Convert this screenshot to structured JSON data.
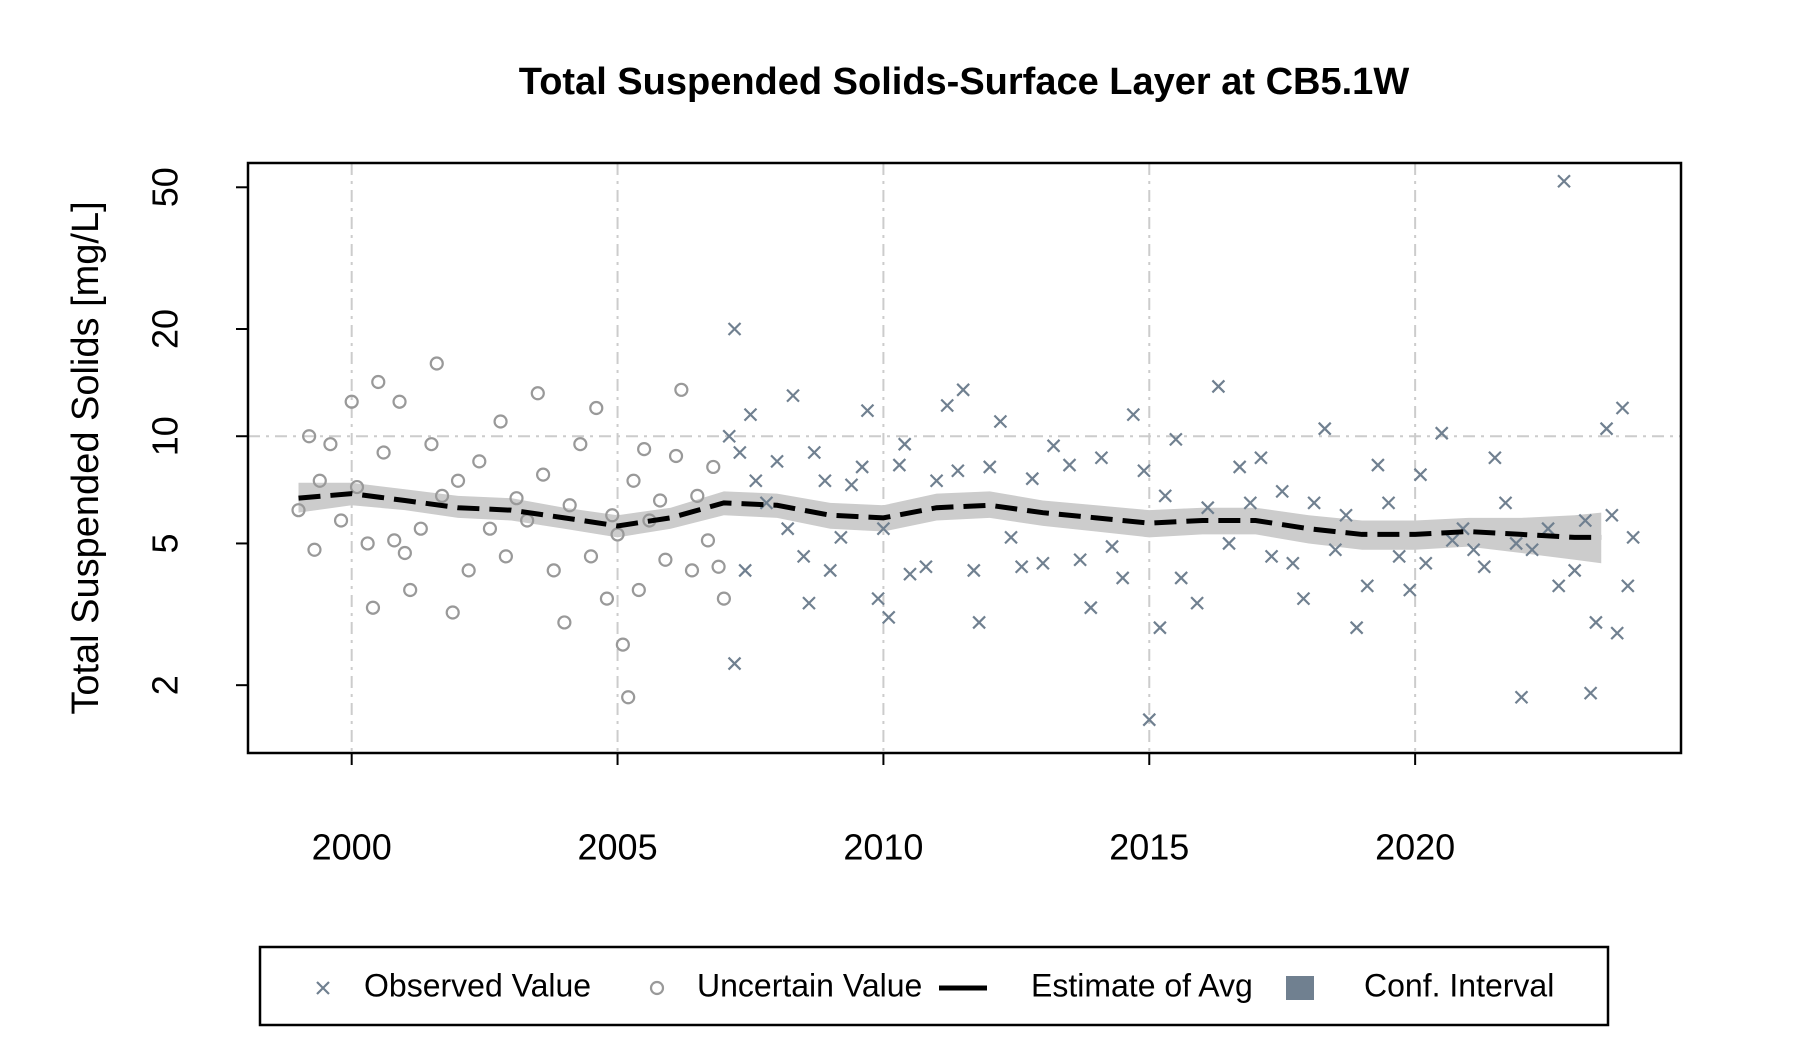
{
  "chart_data": {
    "type": "scatter",
    "title": "Total Suspended Solids-Surface Layer at CB5.1W",
    "y_label": "Total Suspended Solids [mg/L]",
    "xlim": [
      1998.05,
      2025.0
    ],
    "ylim": [
      1.29,
      58.5
    ],
    "y_log": true,
    "xticks": [
      2000,
      2005,
      2010,
      2015,
      2020
    ],
    "yticks": [
      2,
      5,
      10,
      20,
      50
    ],
    "x_grid": true,
    "y_reference_line": 10,
    "legend_position": "bottom",
    "series": [
      {
        "name": "Observed Value",
        "kind": "points",
        "marker": "x",
        "color": "#708090",
        "x": [
          2007.2,
          2007.2,
          2007.5,
          2007.1,
          2007.3,
          2007.6,
          2007.8,
          2007.4,
          2008.0,
          2008.3,
          2008.2,
          2008.6,
          2008.5,
          2008.7,
          2008.9,
          2009.0,
          2009.2,
          2009.4,
          2009.6,
          2009.7,
          2009.9,
          2010.0,
          2010.1,
          2010.3,
          2010.4,
          2010.5,
          2010.8,
          2011.0,
          2011.2,
          2011.4,
          2011.5,
          2011.7,
          2011.8,
          2012.0,
          2012.2,
          2012.4,
          2012.6,
          2012.8,
          2013.0,
          2013.2,
          2013.5,
          2013.7,
          2013.9,
          2014.1,
          2014.3,
          2014.5,
          2014.7,
          2014.9,
          2015.0,
          2015.2,
          2015.3,
          2015.5,
          2015.6,
          2015.9,
          2016.1,
          2016.3,
          2016.5,
          2016.7,
          2016.9,
          2017.1,
          2017.3,
          2017.5,
          2017.7,
          2017.9,
          2018.1,
          2018.3,
          2018.5,
          2018.7,
          2018.9,
          2019.1,
          2019.3,
          2019.5,
          2019.7,
          2019.9,
          2020.1,
          2020.2,
          2020.5,
          2020.7,
          2020.9,
          2021.1,
          2021.3,
          2021.5,
          2021.7,
          2021.9,
          2022.0,
          2022.2,
          2022.5,
          2022.7,
          2022.8,
          2023.0,
          2023.2,
          2023.3,
          2023.4,
          2023.6,
          2023.7,
          2023.8,
          2023.9,
          2024.0,
          2024.1
        ],
        "values": [
          20,
          2.3,
          11.5,
          10,
          9,
          7.5,
          6.5,
          4.2,
          8.5,
          13,
          5.5,
          3.4,
          4.6,
          9,
          7.5,
          4.2,
          5.2,
          7.3,
          8.2,
          11.8,
          3.5,
          5.5,
          3.1,
          8.3,
          9.5,
          4.1,
          4.3,
          7.5,
          12.2,
          8,
          13.5,
          4.2,
          3,
          8.2,
          11,
          5.2,
          4.3,
          7.6,
          4.4,
          9.4,
          8.3,
          4.5,
          3.3,
          8.7,
          4.9,
          4,
          11.5,
          8,
          1.6,
          2.9,
          6.8,
          9.8,
          4,
          3.4,
          6.3,
          13.8,
          5,
          8.2,
          6.5,
          8.7,
          4.6,
          7,
          4.4,
          3.5,
          6.5,
          10.5,
          4.8,
          6,
          2.9,
          3.8,
          8.3,
          6.5,
          4.6,
          3.7,
          7.8,
          4.4,
          10.2,
          5.1,
          5.5,
          4.8,
          4.3,
          8.7,
          6.5,
          5,
          1.85,
          4.8,
          5.5,
          3.8,
          52,
          4.2,
          5.8,
          1.9,
          3,
          10.5,
          6,
          2.8,
          12,
          3.8,
          5.2
        ]
      },
      {
        "name": "Uncertain Value",
        "kind": "points",
        "marker": "o",
        "color": "#999999",
        "x": [
          1999.0,
          1999.2,
          1999.3,
          1999.4,
          1999.6,
          1999.8,
          2000.0,
          2000.1,
          2000.3,
          2000.4,
          2000.5,
          2000.6,
          2000.8,
          2000.9,
          2001.0,
          2001.1,
          2001.3,
          2001.5,
          2001.6,
          2001.7,
          2001.9,
          2002.0,
          2002.2,
          2002.4,
          2002.6,
          2002.8,
          2002.9,
          2003.1,
          2003.3,
          2003.5,
          2003.6,
          2003.8,
          2004.0,
          2004.1,
          2004.3,
          2004.5,
          2004.6,
          2004.8,
          2004.9,
          2005.0,
          2005.1,
          2005.2,
          2005.3,
          2005.4,
          2005.5,
          2005.6,
          2005.8,
          2005.9,
          2006.1,
          2006.2,
          2006.4,
          2006.5,
          2006.7,
          2006.8,
          2006.9,
          2007.0
        ],
        "values": [
          6.2,
          10,
          4.8,
          7.5,
          9.5,
          5.8,
          12.5,
          7.2,
          5,
          3.3,
          14.2,
          9,
          5.1,
          12.5,
          4.7,
          3.7,
          5.5,
          9.5,
          16,
          6.8,
          3.2,
          7.5,
          4.2,
          8.5,
          5.5,
          11,
          4.6,
          6.7,
          5.8,
          13.2,
          7.8,
          4.2,
          3,
          6.4,
          9.5,
          4.6,
          12,
          3.5,
          6,
          5.3,
          2.6,
          1.85,
          7.5,
          3.7,
          9.2,
          5.8,
          6.6,
          4.5,
          8.8,
          13.5,
          4.2,
          6.8,
          5.1,
          8.2,
          4.3,
          3.5
        ]
      },
      {
        "name": "Estimate of Avg",
        "kind": "line",
        "color": "#000000",
        "x": [
          1999,
          2000,
          2001,
          2002,
          2003,
          2004,
          2005,
          2006,
          2007,
          2008,
          2009,
          2010,
          2011,
          2012,
          2013,
          2014,
          2015,
          2016,
          2017,
          2018,
          2019,
          2020,
          2021,
          2022,
          2023,
          2023.5
        ],
        "values": [
          6.7,
          6.9,
          6.6,
          6.3,
          6.2,
          5.9,
          5.6,
          5.9,
          6.5,
          6.4,
          6.0,
          5.9,
          6.3,
          6.4,
          6.1,
          5.9,
          5.7,
          5.8,
          5.8,
          5.5,
          5.3,
          5.3,
          5.4,
          5.3,
          5.2,
          5.2
        ]
      },
      {
        "name": "Conf. Interval",
        "kind": "band",
        "color": "#cccccc",
        "legend_color": "#708090",
        "x": [
          1999,
          2000,
          2001,
          2002,
          2003,
          2004,
          2005,
          2006,
          2007,
          2008,
          2009,
          2010,
          2011,
          2012,
          2013,
          2014,
          2015,
          2016,
          2017,
          2018,
          2019,
          2020,
          2021,
          2022,
          2023,
          2023.5
        ],
        "lower": [
          6.1,
          6.4,
          6.2,
          5.9,
          5.8,
          5.5,
          5.2,
          5.5,
          6.0,
          5.9,
          5.5,
          5.4,
          5.8,
          5.9,
          5.6,
          5.4,
          5.2,
          5.3,
          5.3,
          5.0,
          4.8,
          4.8,
          4.9,
          4.7,
          4.5,
          4.4
        ],
        "upper": [
          7.4,
          7.4,
          7.1,
          6.8,
          6.7,
          6.3,
          6.0,
          6.3,
          7.0,
          6.9,
          6.5,
          6.4,
          6.9,
          7.0,
          6.6,
          6.4,
          6.2,
          6.3,
          6.3,
          6.0,
          5.8,
          5.8,
          5.9,
          5.9,
          6.0,
          6.1
        ]
      }
    ]
  }
}
